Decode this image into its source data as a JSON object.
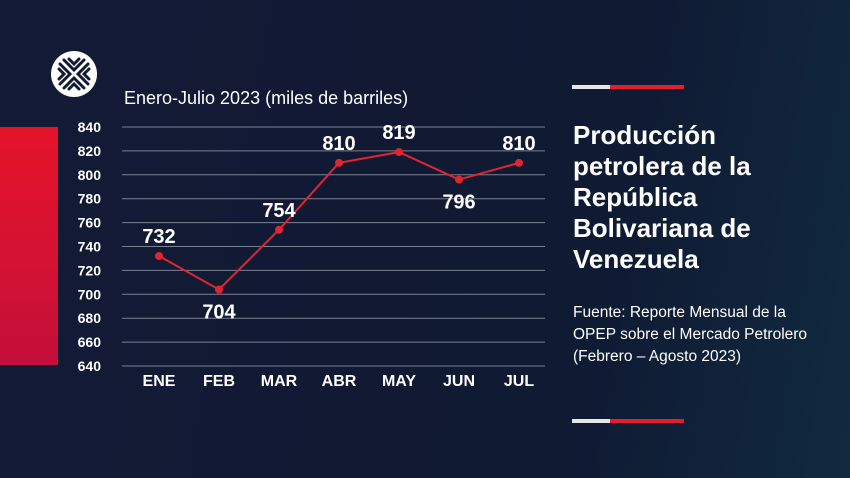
{
  "logo_icon": "x-lattice-logo-icon",
  "colors": {
    "accent_red": "#e31e2d",
    "line": "#e02530",
    "grid": "#7a8194"
  },
  "header": {
    "title": "Producción petrolera de la República Bolivariana de Venezuela",
    "source": "Fuente: Reporte Mensual de la OPEP sobre el Mercado Petrolero (Febrero – Agosto 2023)"
  },
  "chart_data": {
    "type": "line",
    "subtitle": "Enero-Julio 2023 (miles de barriles)",
    "categories": [
      "ENE",
      "FEB",
      "MAR",
      "ABR",
      "MAY",
      "JUN",
      "JUL"
    ],
    "series": [
      {
        "values": [
          732,
          704,
          754,
          810,
          819,
          796,
          810
        ]
      }
    ],
    "ylim": [
      640,
      840
    ],
    "yticks": [
      640,
      660,
      680,
      700,
      720,
      740,
      760,
      780,
      800,
      820,
      840
    ],
    "grid": true,
    "legend": "none"
  }
}
